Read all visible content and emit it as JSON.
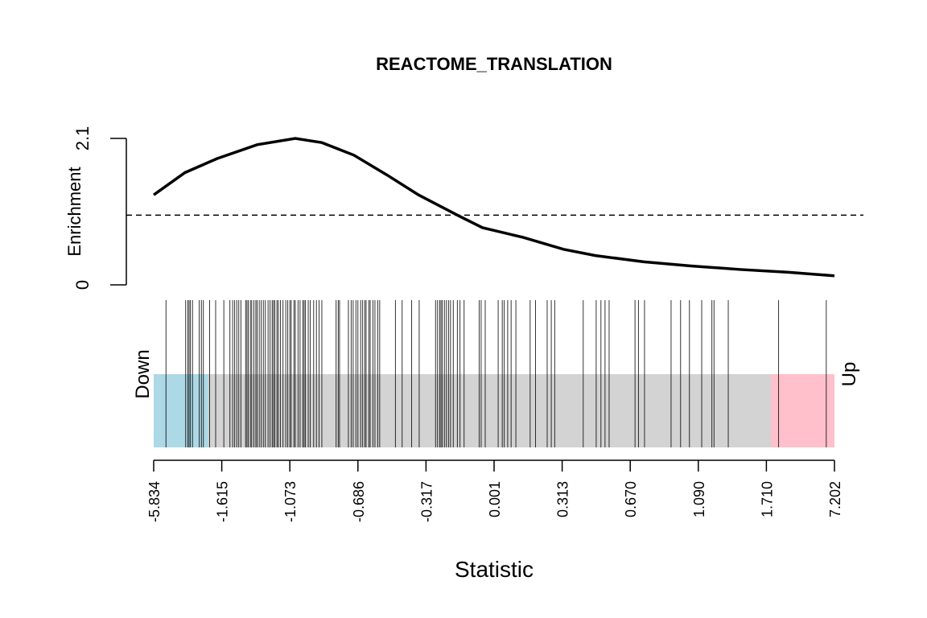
{
  "chart_data": {
    "type": "barcode",
    "title": "REACTOME_TRANSLATION",
    "ylabel": "Enrichment",
    "xlabel": "Statistic",
    "xlim": [
      0,
      100
    ],
    "xticks": [
      {
        "value": 0,
        "label": "-5.834"
      },
      {
        "value": 10,
        "label": "-1.615"
      },
      {
        "value": 20,
        "label": "-1.073"
      },
      {
        "value": 30,
        "label": "-0.686"
      },
      {
        "value": 40,
        "label": "-0.317"
      },
      {
        "value": 50,
        "label": "0.001"
      },
      {
        "value": 60,
        "label": "0.313"
      },
      {
        "value": 70,
        "label": "0.670"
      },
      {
        "value": 80,
        "label": "1.090"
      },
      {
        "value": 90,
        "label": "1.710"
      },
      {
        "value": 100,
        "label": "7.202"
      }
    ],
    "ylim": [
      0,
      2.1
    ],
    "yticks": [
      0,
      2.1
    ],
    "hline": 1,
    "x": [
      0,
      4.6,
      9.3,
      15.2,
      20.8,
      24.7,
      29.4,
      34.2,
      38.9,
      44.8,
      48.3,
      54.3,
      60.2,
      64.9,
      72.0,
      79.1,
      86.2,
      93.3,
      100
    ],
    "values": [
      1.29,
      1.61,
      1.81,
      2.01,
      2.1,
      2.04,
      1.86,
      1.58,
      1.29,
      0.99,
      0.82,
      0.68,
      0.51,
      0.42,
      0.33,
      0.27,
      0.22,
      0.18,
      0.13
    ],
    "color": "#000000",
    "barcode": [
      1.8,
      4.7,
      5.0,
      5.2,
      5.4,
      5.7,
      6.7,
      7.0,
      7.3,
      8.2,
      9.1,
      10.3,
      11.2,
      11.6,
      11.9,
      12.2,
      12.5,
      12.8,
      13.5,
      13.7,
      13.9,
      14.2,
      14.4,
      14.7,
      15.0,
      15.2,
      15.5,
      15.8,
      16.1,
      16.4,
      16.8,
      17.1,
      17.4,
      17.6,
      17.8,
      18.1,
      18.3,
      18.6,
      19.0,
      19.4,
      19.7,
      20.0,
      20.2,
      20.6,
      20.8,
      21.2,
      21.5,
      21.9,
      22.1,
      22.3,
      22.7,
      23.0,
      23.5,
      23.9,
      24.3,
      24.7,
      26.8,
      27.1,
      27.3,
      28.6,
      29.0,
      29.3,
      29.7,
      30.0,
      30.4,
      30.7,
      31.0,
      31.2,
      31.6,
      31.8,
      32.2,
      32.5,
      32.9,
      33.2,
      35.5,
      36.5,
      37.9,
      39.0,
      41.4,
      41.7,
      42.0,
      42.2,
      42.4,
      42.7,
      43.0,
      43.3,
      43.6,
      44.0,
      44.6,
      45.0,
      45.6,
      47.8,
      48.1,
      48.7,
      50.6,
      51.2,
      51.5,
      52.0,
      52.5,
      53.2,
      55.3,
      56.1,
      57.8,
      58.4,
      58.9,
      63.1,
      65.0,
      65.7,
      66.3,
      66.9,
      70.7,
      71.2,
      72.1,
      76.0,
      77.4,
      78.7,
      80.5,
      82.0,
      82.3,
      84.4,
      91.8,
      98.8
    ],
    "background": "#d3d3d3",
    "regions": [
      {
        "label": "Down",
        "xlim": [
          0,
          8.0
        ],
        "color": "#add8e6"
      },
      {
        "label": "Up",
        "xlim": [
          90.7,
          100
        ],
        "color": "#ffc0cb"
      }
    ]
  }
}
